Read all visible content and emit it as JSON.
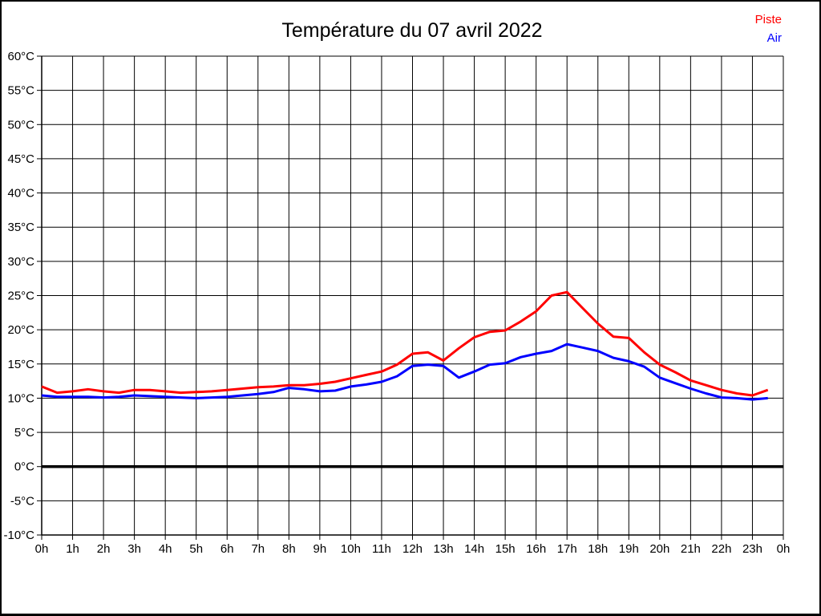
{
  "title": "Température du 07 avril 2022",
  "legend": {
    "items": [
      {
        "label": "Piste",
        "color": "#ff0000"
      },
      {
        "label": "Air",
        "color": "#0000ff"
      }
    ]
  },
  "colors": {
    "grid": "#000000",
    "axis": "#000000",
    "zero_line": "#000000",
    "text": "#000000",
    "background": "#ffffff"
  },
  "chart_data": {
    "type": "line",
    "title": "Température du 07 avril 2022",
    "xlabel": "",
    "ylabel": "",
    "xlim": [
      0,
      24
    ],
    "ylim": [
      -10,
      60
    ],
    "y_step": 5,
    "x_step": 1,
    "grid": true,
    "legend_position": "top-right",
    "y_tick_labels": [
      "60°C",
      "55°C",
      "50°C",
      "45°C",
      "40°C",
      "35°C",
      "30°C",
      "25°C",
      "20°C",
      "15°C",
      "10°C",
      "5°C",
      "0°C",
      "-5°C",
      "-10°C"
    ],
    "x_tick_labels": [
      "0h",
      "1h",
      "2h",
      "3h",
      "4h",
      "5h",
      "6h",
      "7h",
      "8h",
      "9h",
      "10h",
      "11h",
      "12h",
      "13h",
      "14h",
      "15h",
      "16h",
      "17h",
      "18h",
      "19h",
      "20h",
      "21h",
      "22h",
      "23h",
      "0h"
    ],
    "x": [
      0,
      0.5,
      1,
      1.5,
      2,
      2.5,
      3,
      3.5,
      4,
      4.5,
      5,
      5.5,
      6,
      6.5,
      7,
      7.5,
      8,
      8.5,
      9,
      9.5,
      10,
      10.5,
      11,
      11.5,
      12,
      12.5,
      13,
      13.5,
      14,
      14.5,
      15,
      15.5,
      16,
      16.5,
      17,
      17.5,
      18,
      18.5,
      19,
      19.5,
      20,
      20.5,
      21,
      21.5,
      22,
      22.5,
      23,
      23.5
    ],
    "series": [
      {
        "name": "Piste",
        "color": "#ff0000",
        "values": [
          11.7,
          10.8,
          11.0,
          11.3,
          11.0,
          10.8,
          11.2,
          11.2,
          11.0,
          10.8,
          10.9,
          11.0,
          11.2,
          11.4,
          11.6,
          11.7,
          11.9,
          11.9,
          12.1,
          12.4,
          12.9,
          13.4,
          13.9,
          14.9,
          16.5,
          16.7,
          15.5,
          17.3,
          18.9,
          19.7,
          19.9,
          21.2,
          22.7,
          25.0,
          25.5,
          23.2,
          20.9,
          19.0,
          18.8,
          16.7,
          14.9,
          13.8,
          12.6,
          11.9,
          11.2,
          10.7,
          10.4,
          11.2
        ]
      },
      {
        "name": "Air",
        "color": "#0000ff",
        "values": [
          10.4,
          10.2,
          10.2,
          10.2,
          10.1,
          10.2,
          10.4,
          10.3,
          10.2,
          10.1,
          10.0,
          10.1,
          10.2,
          10.4,
          10.6,
          10.9,
          11.5,
          11.3,
          11.0,
          11.1,
          11.7,
          12.0,
          12.4,
          13.2,
          14.7,
          14.9,
          14.7,
          13.0,
          13.9,
          14.9,
          15.1,
          16.0,
          16.5,
          16.9,
          17.9,
          17.4,
          16.9,
          15.9,
          15.4,
          14.6,
          13.0,
          12.2,
          11.4,
          10.7,
          10.1,
          10.0,
          9.8,
          10.0
        ]
      }
    ]
  }
}
